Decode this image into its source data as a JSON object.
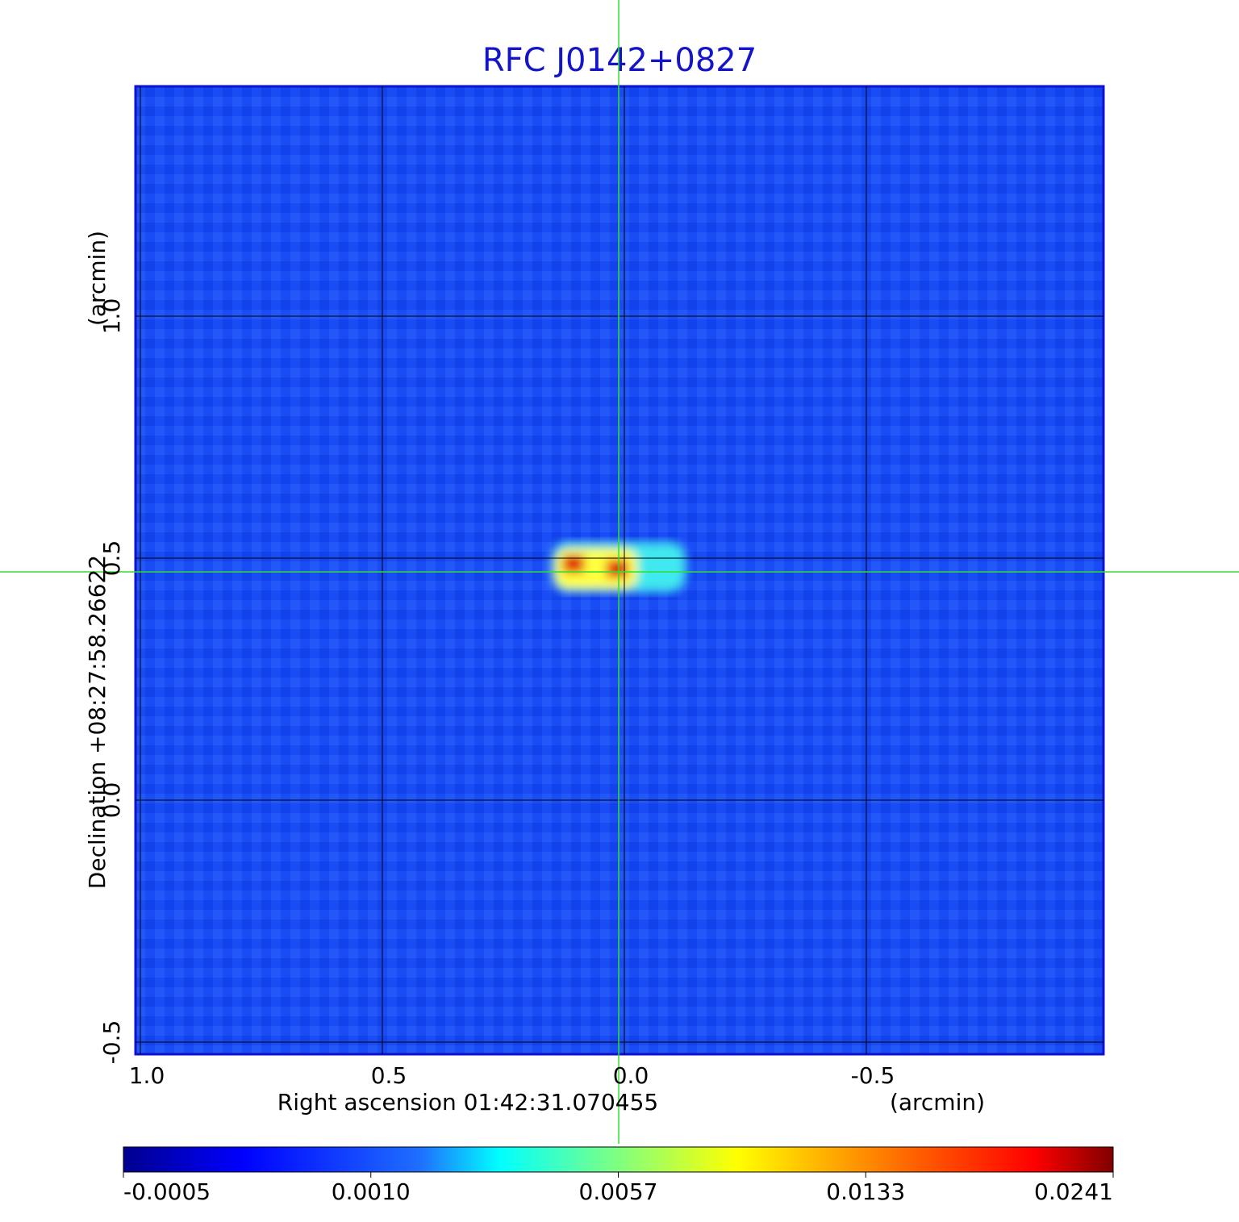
{
  "chart_data": {
    "type": "image",
    "title": "RFC J0142+0827",
    "x_label": "Right ascension  01:42:31.070455",
    "x_unit": "(arcmin)",
    "y_label": "Declination  +08:27:58.26622",
    "y_unit": "(arcmin)",
    "xlim": [
      1.01,
      -0.99
    ],
    "ylim": [
      -0.525,
      1.475
    ],
    "xticks": [
      {
        "value": 1,
        "label": "1.0"
      },
      0.5,
      {
        "value": 0,
        "label": "0.0"
      },
      -0.5
    ],
    "yticks": [
      -0.5,
      {
        "value": 0,
        "label": "0.0"
      },
      0.5,
      {
        "value": 1,
        "label": "1.0"
      }
    ],
    "grid": true,
    "colorbar_ticks": [
      -0.0005,
      {
        "value": 0.001,
        "label": "0.0010"
      },
      0.0057,
      0.0133,
      0.0241
    ]
  }
}
